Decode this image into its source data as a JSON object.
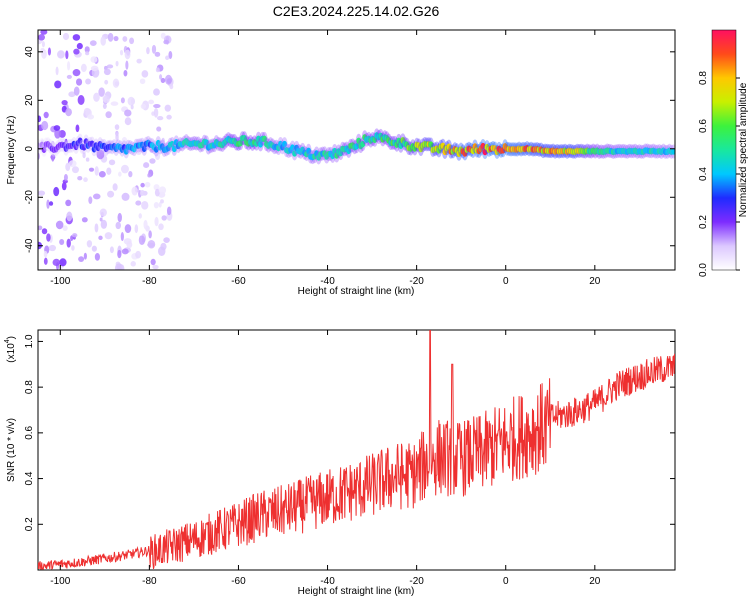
{
  "title": "C2E3.2024.225.14.02.G26",
  "chart_data": [
    {
      "type": "heatmap",
      "xlabel": "Height of straight line (km)",
      "ylabel": "Frequency (Hz)",
      "xlim": [
        -105,
        38
      ],
      "ylim": [
        -50,
        49
      ],
      "xticks": [
        -100,
        -80,
        -60,
        -40,
        -20,
        0,
        20
      ],
      "yticks": [
        -40,
        -20,
        0,
        20,
        40
      ],
      "grid": false,
      "colorbar": {
        "label": "Normalized spectral amplitude",
        "range": [
          0,
          1
        ],
        "ticks": [
          0.0,
          0.2,
          0.4,
          0.6,
          0.8
        ],
        "colormap": [
          "#ffffff",
          "#dcc8ff",
          "#7d2cff",
          "#1f2bff",
          "#00c8ff",
          "#19e89e",
          "#3df23d",
          "#c8f000",
          "#ffc800",
          "#ff4a1a",
          "#ff1060"
        ]
      },
      "ridge": {
        "x": [
          -105,
          -100,
          -95,
          -90,
          -85,
          -80,
          -75,
          -70,
          -65,
          -60,
          -55,
          -50,
          -45,
          -40,
          -35,
          -30,
          -25,
          -20,
          -15,
          -10,
          -5,
          0,
          5,
          10,
          15,
          20,
          25,
          30,
          38
        ],
        "frequency_hz": [
          0,
          1,
          2,
          0,
          0,
          1,
          1,
          2,
          2,
          3,
          3,
          1,
          -2,
          -3,
          0,
          5,
          3,
          1,
          0,
          -1,
          0,
          0,
          0,
          -1,
          -1,
          -1,
          -1,
          -1,
          -1
        ],
        "amplitude": [
          0.15,
          0.25,
          0.3,
          0.35,
          0.4,
          0.4,
          0.45,
          0.5,
          0.5,
          0.6,
          0.55,
          0.45,
          0.5,
          0.5,
          0.55,
          0.55,
          0.6,
          0.7,
          0.8,
          0.9,
          0.95,
          0.95,
          0.9,
          0.85,
          0.85,
          0.55,
          0.5,
          0.5,
          0.45
        ]
      }
    },
    {
      "type": "line",
      "xlabel": "Height of straight line (km)",
      "ylabel": "SNR (10 * v/v)",
      "y_multiplier": "(x10",
      "y_multiplier_exp": "4",
      "xlim": [
        -105,
        38
      ],
      "ylim": [
        0,
        1.05
      ],
      "xticks": [
        -100,
        -80,
        -60,
        -40,
        -20,
        0,
        20
      ],
      "yticks": [
        0.2,
        0.4,
        0.6,
        0.8,
        1.0
      ],
      "line_color": "#ee3030",
      "series": [
        {
          "x": [
            -105,
            -95,
            -85,
            -80,
            -70,
            -60,
            -55,
            -50,
            -45,
            -40,
            -35,
            -30,
            -25,
            -20,
            -18,
            -15,
            -10,
            -5,
            0,
            5,
            10,
            15,
            20,
            25,
            30,
            35,
            38
          ],
          "values": [
            0.02,
            0.04,
            0.07,
            0.09,
            0.15,
            0.22,
            0.26,
            0.28,
            0.31,
            0.34,
            0.37,
            0.4,
            0.44,
            0.45,
            0.5,
            0.53,
            0.52,
            0.55,
            0.6,
            0.64,
            0.68,
            0.7,
            0.74,
            0.82,
            0.86,
            0.89,
            0.9
          ]
        }
      ]
    }
  ]
}
